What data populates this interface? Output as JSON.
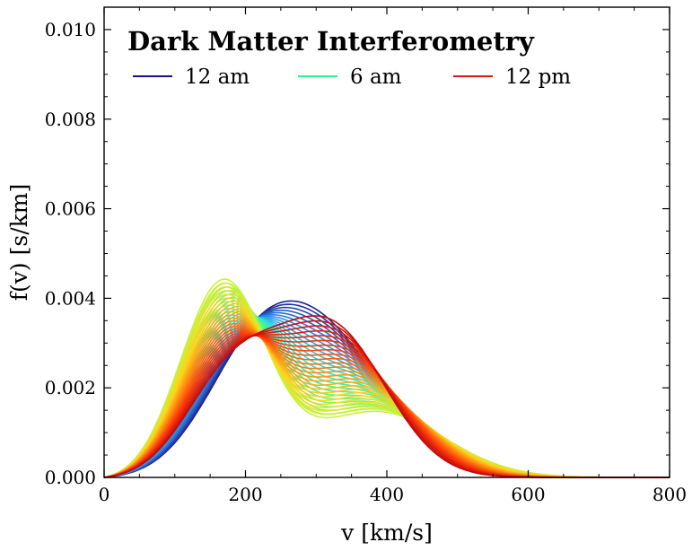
{
  "chart_data": {
    "type": "line",
    "title": "Dark Matter Interferometry",
    "xlabel": "v [km/s]",
    "ylabel": "f(v) [s/km]",
    "xlim": [
      0,
      800
    ],
    "ylim": [
      0,
      0.0105
    ],
    "x_ticks": [
      "0",
      "200",
      "400",
      "600",
      "800"
    ],
    "y_ticks": [
      "0.000",
      "0.002",
      "0.004",
      "0.006",
      "0.008",
      "0.010"
    ],
    "legend_position": "top",
    "legend": [
      {
        "name": "12 am",
        "color": "#1a0f8f"
      },
      {
        "name": "6 am",
        "color": "#2cf58a"
      },
      {
        "name": "12 pm",
        "color": "#d51a0c"
      }
    ],
    "colormap": [
      "#20208f",
      "#2a8ff0",
      "#2ee6d8",
      "#4df78a",
      "#c8f23b",
      "#ffd21a",
      "#ff8a10",
      "#ff3a0a",
      "#c40a0a"
    ],
    "series": [
      {
        "name": "12 am",
        "components": [
          {
            "w": 0.4,
            "mu": 210,
            "sigma": 72
          },
          {
            "w": 0.6,
            "mu": 320,
            "sigma": 85
          }
        ]
      },
      {
        "name": "6 am",
        "components": [
          {
            "w": 0.65,
            "mu": 168,
            "sigma": 60
          },
          {
            "w": 0.35,
            "mu": 385,
            "sigma": 95
          }
        ]
      },
      {
        "name": "12 pm",
        "components": [
          {
            "w": 0.35,
            "mu": 180,
            "sigma": 65
          },
          {
            "w": 0.65,
            "mu": 320,
            "sigma": 78
          }
        ]
      }
    ]
  }
}
